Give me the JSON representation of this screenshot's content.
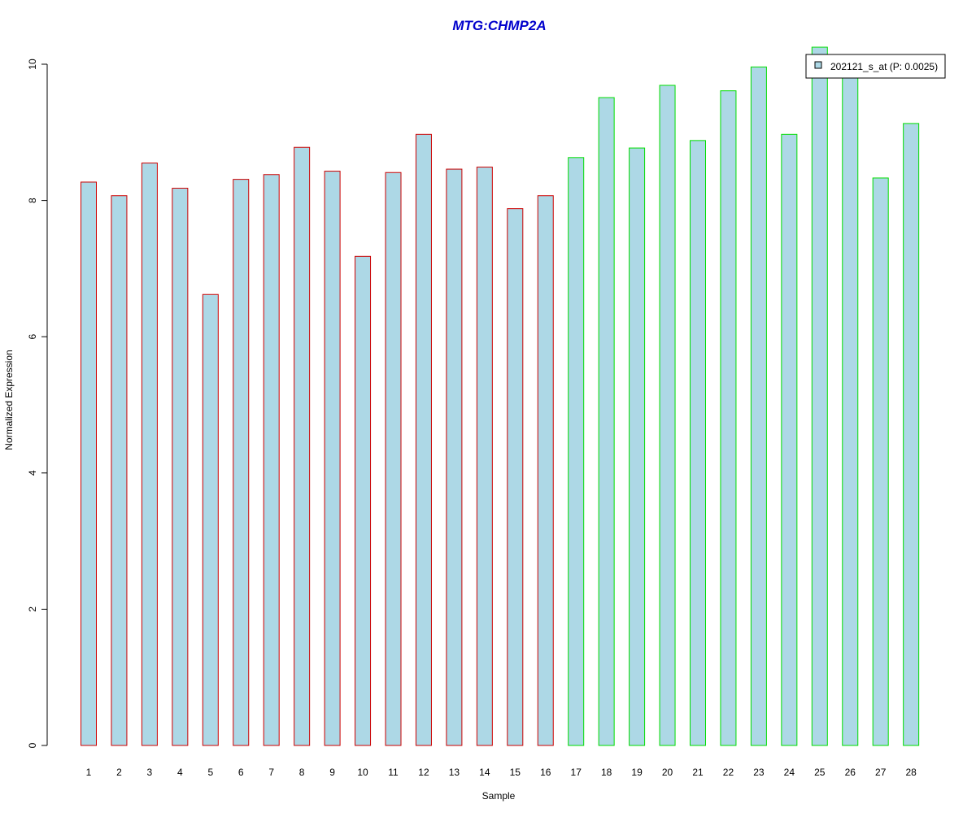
{
  "chart_data": {
    "type": "bar",
    "title": "MTG:CHMP2A",
    "xlabel": "Sample",
    "ylabel": "Normalized Expression",
    "categories": [
      "1",
      "2",
      "3",
      "4",
      "5",
      "6",
      "7",
      "8",
      "9",
      "10",
      "11",
      "12",
      "13",
      "14",
      "15",
      "16",
      "17",
      "18",
      "19",
      "20",
      "21",
      "22",
      "23",
      "24",
      "25",
      "26",
      "27",
      "28"
    ],
    "series": [
      {
        "name": "202121_s_at (P: 0.0025)",
        "values": [
          8.27,
          8.07,
          8.55,
          8.18,
          6.62,
          8.31,
          8.38,
          8.78,
          8.43,
          7.18,
          8.41,
          8.97,
          8.46,
          8.49,
          7.88,
          8.07,
          8.63,
          9.51,
          8.77,
          9.69,
          8.88,
          9.61,
          9.96,
          8.97,
          10.25,
          9.92,
          8.33,
          9.13
        ]
      }
    ],
    "group_border_colors": [
      "#cc0000",
      "#cc0000",
      "#cc0000",
      "#cc0000",
      "#cc0000",
      "#cc0000",
      "#cc0000",
      "#cc0000",
      "#cc0000",
      "#cc0000",
      "#cc0000",
      "#cc0000",
      "#cc0000",
      "#cc0000",
      "#cc0000",
      "#cc0000",
      "#00dd00",
      "#00dd00",
      "#00dd00",
      "#00dd00",
      "#00dd00",
      "#00dd00",
      "#00dd00",
      "#00dd00",
      "#00dd00",
      "#00dd00",
      "#00dd00",
      "#00dd00"
    ],
    "yticks": [
      "0",
      "2",
      "4",
      "6",
      "8",
      "10"
    ],
    "ylim": [
      0,
      10
    ],
    "bar_fill": "#add8e6",
    "title_color": "#0000cc",
    "grid": false,
    "legend_position": "top-right"
  }
}
